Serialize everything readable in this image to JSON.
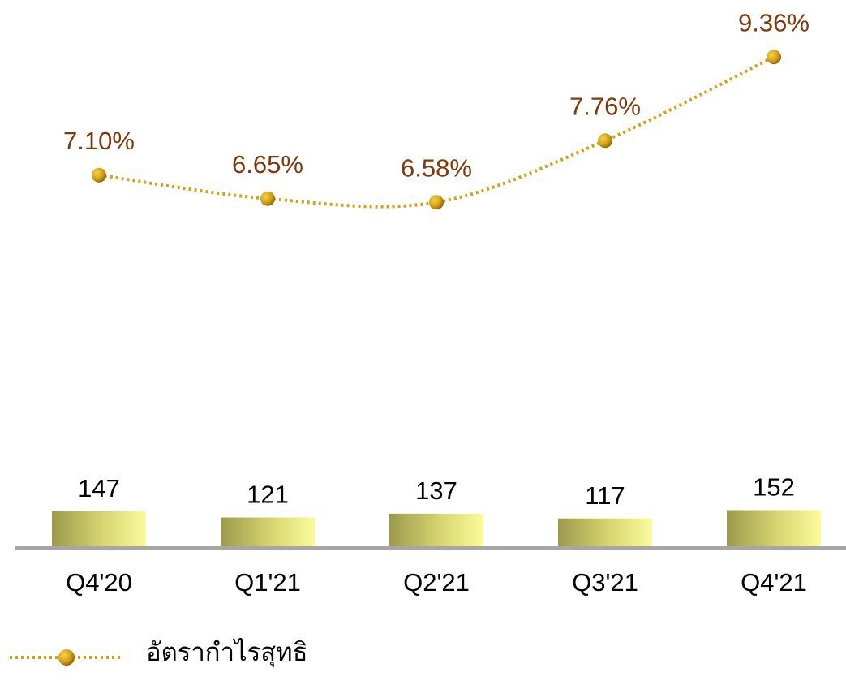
{
  "chart_data": {
    "type": "bar_line",
    "categories": [
      "Q4'20",
      "Q1'21",
      "Q2'21",
      "Q3'21",
      "Q4'21"
    ],
    "bars": {
      "values": [
        147,
        121,
        137,
        117,
        152
      ],
      "color": "#f4f48a"
    },
    "line": {
      "name": "อัตรากำไรสุทธิ",
      "values": [
        7.1,
        6.65,
        6.58,
        7.76,
        9.36
      ],
      "value_labels": [
        "7.10%",
        "6.65%",
        "6.58%",
        "7.76%",
        "9.36%"
      ],
      "color": "#d4a017",
      "label_color": "#7f3a0c",
      "dotted": true
    },
    "legend": "bottom-left"
  }
}
